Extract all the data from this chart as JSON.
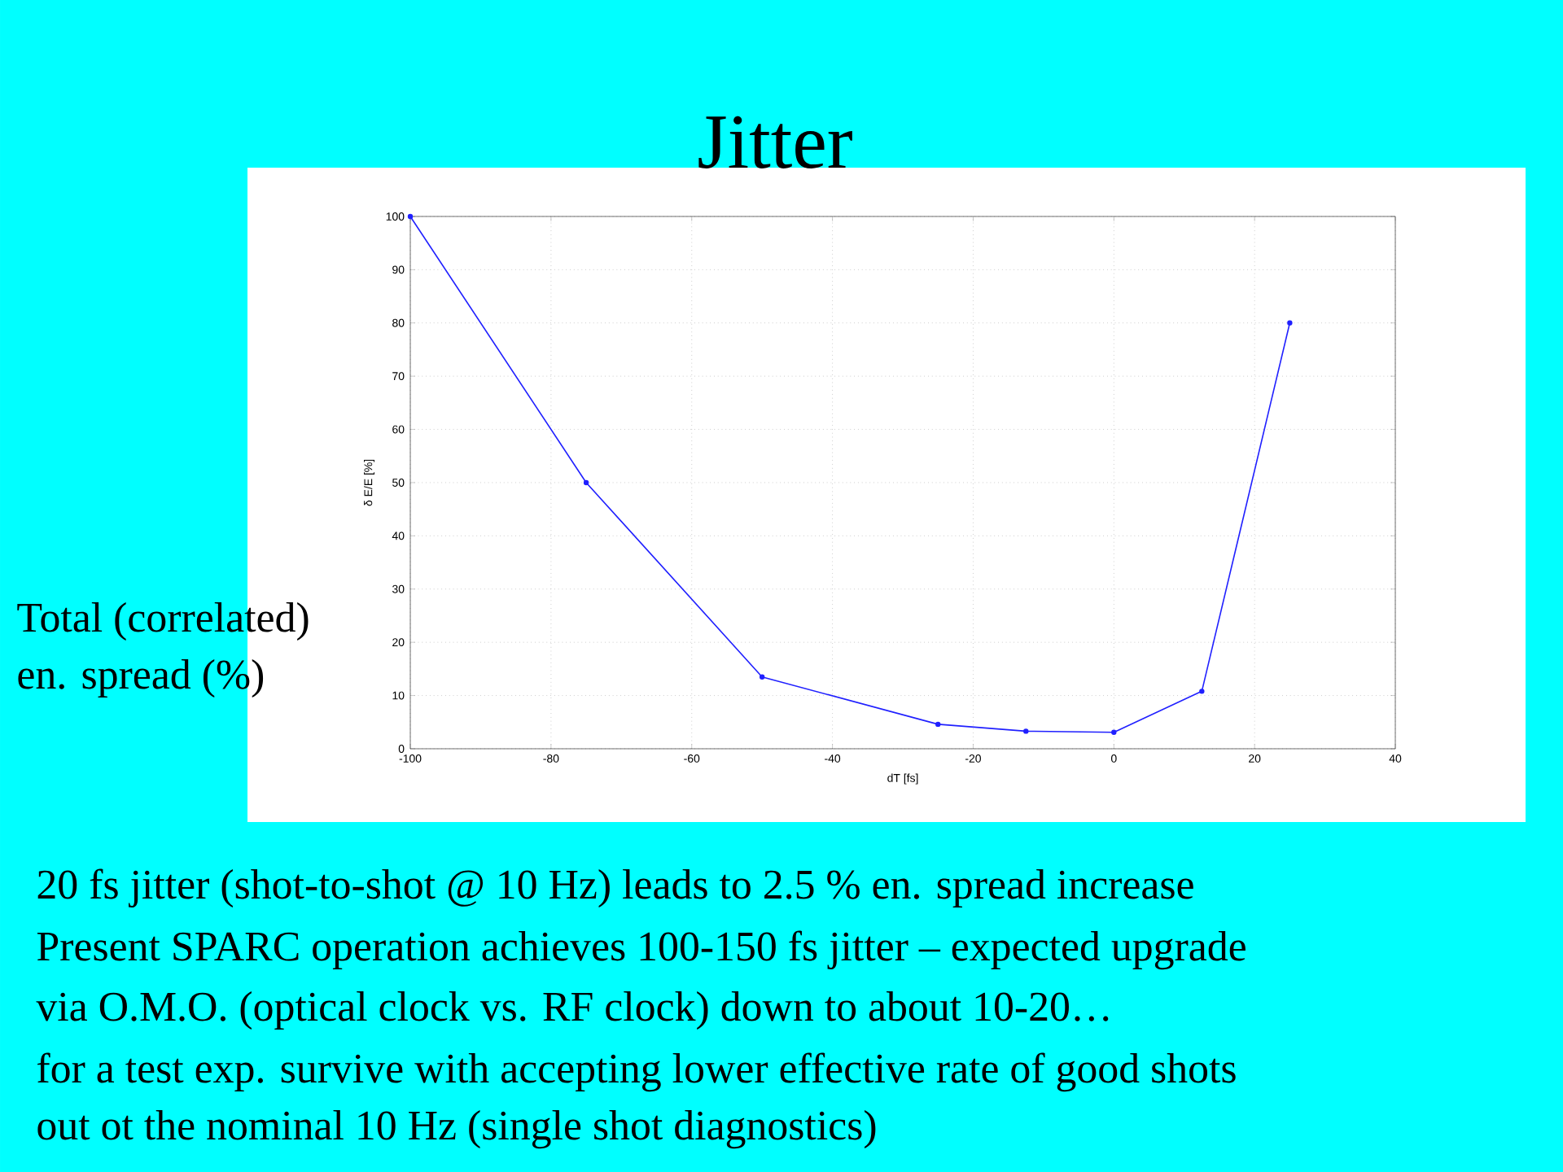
{
  "chart_data": {
    "type": "line",
    "title": "Jitter",
    "xlabel": "dT [fs]",
    "ylabel": "δ E/E [%]",
    "x": [
      -100,
      -75,
      -50,
      -25,
      -12.5,
      0,
      12.5,
      25
    ],
    "series": [
      {
        "color": "#2020ff",
        "values": [
          100,
          50,
          13.5,
          4.6,
          3.3,
          3.1,
          10.8,
          80
        ]
      }
    ],
    "xlim": [
      -100,
      40
    ],
    "ylim": [
      0,
      100
    ],
    "xticks": [
      -100,
      -80,
      -60,
      -40,
      -20,
      0,
      20,
      40
    ],
    "yticks": [
      0,
      10,
      20,
      30,
      40,
      50,
      60,
      70,
      80,
      90,
      100
    ],
    "grid": true,
    "marker": "circle",
    "line_style": "solid",
    "annotations": [
      "Total (correlated)",
      "en. spread (%)",
      "20 fs jitter (shot-to-shot @ 10 Hz) leads to 2.5 % en. spread increase",
      "Present SPARC operation achieves 100-150 fs jitter – expected upgrade",
      "via O.M.O. (optical clock vs. RF clock) down to about 10-20…",
      "for a test exp. survive with accepting lower effective rate of good shots",
      "out ot the nominal 10 Hz (single shot diagnostics)"
    ]
  }
}
